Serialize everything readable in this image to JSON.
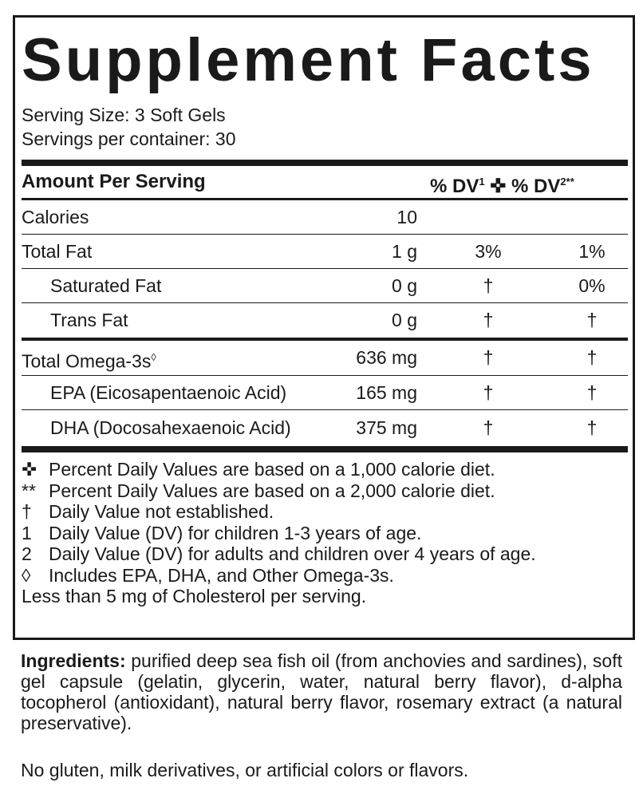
{
  "title": "Supplement Facts",
  "serving_size": "Serving Size: 3 Soft Gels",
  "servings_per_container": "Servings per container: 30",
  "header": {
    "amount": "Amount Per Serving",
    "dv1": "% DV",
    "dv1_sup": "1",
    "cross": "✜",
    "dv2": "% DV",
    "dv2_sup": "2**"
  },
  "rows": [
    {
      "name": "Calories",
      "amount": "10",
      "dv1": "",
      "dv2": ""
    },
    {
      "name": "Total Fat",
      "amount": "1 g",
      "dv1": "3%",
      "dv2": "1%"
    },
    {
      "name": "Saturated Fat",
      "amount": "0 g",
      "dv1": "†",
      "dv2": "0%"
    },
    {
      "name": "Trans Fat",
      "amount": "0 g",
      "dv1": "†",
      "dv2": "†"
    },
    {
      "name": "Total Omega-3s",
      "name_sup": "◊",
      "amount": "636 mg",
      "dv1": "†",
      "dv2": "†"
    },
    {
      "name": "EPA (Eicosapentaenoic Acid)",
      "amount": "165 mg",
      "dv1": "†",
      "dv2": "†"
    },
    {
      "name": "DHA (Docosahexaenoic Acid)",
      "amount": "375 mg",
      "dv1": "†",
      "dv2": "†"
    }
  ],
  "footnotes": [
    {
      "sym": "✜",
      "text": "Percent Daily Values are based on a 1,000 calorie diet."
    },
    {
      "sym": "**",
      "text": "Percent Daily Values are based on a 2,000 calorie diet."
    },
    {
      "sym": "†",
      "text": "Daily Value not established."
    },
    {
      "sym": "1",
      "text": "Daily Value (DV) for children 1-3 years of age."
    },
    {
      "sym": "2",
      "text": "Daily Value (DV) for adults and children over 4 years of age."
    },
    {
      "sym": "◊",
      "text": "Includes EPA, DHA, and Other Omega-3s."
    }
  ],
  "cholesterol": "Less than 5 mg of Cholesterol per serving.",
  "ingredients_label": "Ingredients:",
  "ingredients": "purified deep sea fish oil (from anchovies and sardines), soft gel capsule (gelatin, glycerin, water, natural berry flavor), d-alpha tocopherol (antioxidant), natural berry flavor, rosemary extract (a natural preservative).",
  "allergen_note": "No gluten, milk derivatives, or artificial colors or flavors."
}
